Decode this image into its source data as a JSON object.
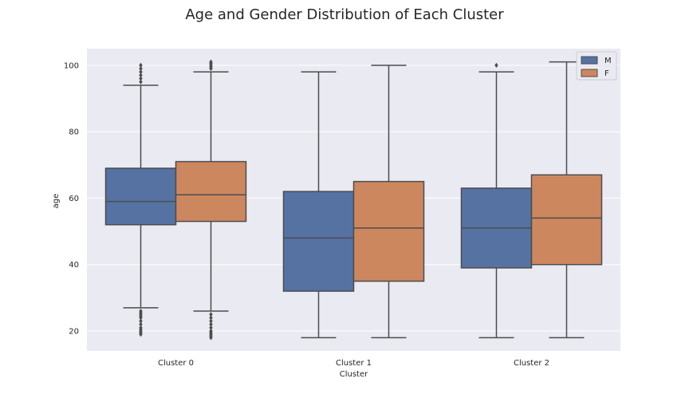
{
  "chart_data": {
    "type": "box",
    "title": "Age and Gender Distribution of Each Cluster",
    "xlabel": "Cluster",
    "ylabel": "age",
    "categories": [
      "Cluster 0",
      "Cluster 1",
      "Cluster 2"
    ],
    "ylim": [
      14,
      105
    ],
    "yticks": [
      20,
      40,
      60,
      80,
      100
    ],
    "grid": true,
    "legend_position": "top-right",
    "series": [
      {
        "name": "M",
        "color": "#5572a3",
        "boxes": [
          {
            "whisker_low": 27,
            "q1": 52,
            "median": 59,
            "q3": 69,
            "whisker_high": 94,
            "outliers": [
              19,
              19.5,
              20,
              20.5,
              21,
              22,
              23,
              24,
              24.5,
              25,
              25.5,
              26,
              95,
              96,
              97,
              98,
              99,
              100
            ]
          },
          {
            "whisker_low": 18,
            "q1": 32,
            "median": 48,
            "q3": 62,
            "whisker_high": 98,
            "outliers": []
          },
          {
            "whisker_low": 18,
            "q1": 39,
            "median": 51,
            "q3": 63,
            "whisker_high": 98,
            "outliers": [
              100
            ]
          }
        ]
      },
      {
        "name": "F",
        "color": "#cd875f",
        "boxes": [
          {
            "whisker_low": 26,
            "q1": 53,
            "median": 61,
            "q3": 71,
            "whisker_high": 98,
            "outliers": [
              18,
              18.5,
              19,
              19.5,
              20,
              21,
              22,
              23,
              24,
              25,
              99,
              99.5,
              100,
              100.5,
              101
            ]
          },
          {
            "whisker_low": 18,
            "q1": 35,
            "median": 51,
            "q3": 65,
            "whisker_high": 100,
            "outliers": []
          },
          {
            "whisker_low": 18,
            "q1": 40,
            "median": 54,
            "q3": 67,
            "whisker_high": 101,
            "outliers": []
          }
        ]
      }
    ]
  },
  "colors": {
    "plot_background": "#eaeaf2",
    "gridline": "#ffffff",
    "line": "#4d4d4d",
    "text": "#262626"
  }
}
